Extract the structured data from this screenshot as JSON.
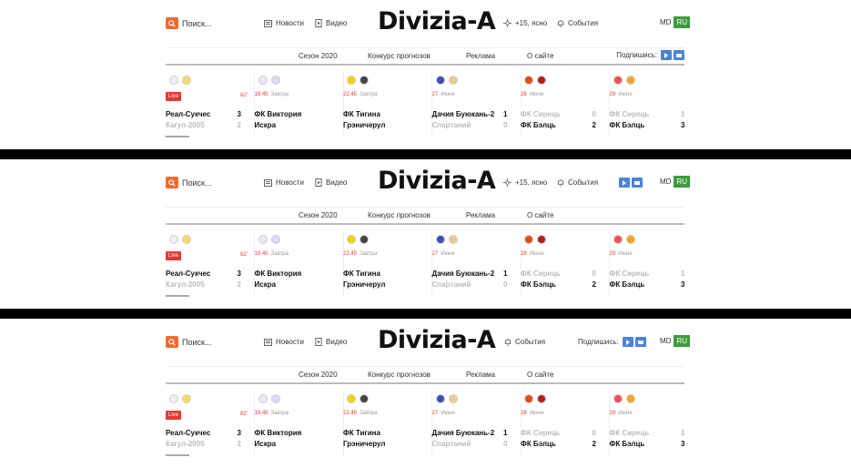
{
  "search": {
    "label": "Поиск..."
  },
  "nav": {
    "news": "Новости",
    "video": "Видео"
  },
  "logo": "Divizia-A",
  "weather": "+15, ясно",
  "events": "События",
  "subscribe": "Подпишись:",
  "langs": {
    "md": "MD",
    "ru": "RU"
  },
  "subnav": [
    "Сезон 2020",
    "Конкурс прогнозов",
    "Реклама",
    "О сайте"
  ],
  "games": [
    {
      "status": "Live",
      "minute": "82'",
      "date": "",
      "day": "",
      "t1": "Реал-Сукчес",
      "s1": "3",
      "t2": "Кагул-2005",
      "s2": "2",
      "w": 1,
      "c1": "#eef",
      "c2": "#ffd966"
    },
    {
      "status": "",
      "minute": "",
      "date": "19.45",
      "day": "Завтра",
      "t1": "ФК Виктория",
      "s1": "",
      "t2": "Искра",
      "s2": "",
      "w": 0,
      "c1": "#e6e9ff",
      "c2": "#e0d7ff"
    },
    {
      "status": "",
      "minute": "",
      "date": "22.45",
      "day": "Завтра",
      "t1": "ФК Тигина",
      "s1": "",
      "t2": "Грэничерул",
      "s2": "",
      "w": 0,
      "c1": "#f1d400",
      "c2": "#444"
    },
    {
      "status": "",
      "minute": "",
      "date": "27",
      "day": "Июня",
      "t1": "Дачия Буюкань-2",
      "s1": "1",
      "t2": "Спартаний",
      "s2": "0",
      "w": 1,
      "c1": "#3b4fb5",
      "c2": "#f3c98b"
    },
    {
      "status": "",
      "minute": "",
      "date": "28",
      "day": "Июня",
      "t1": "ФК Сирець",
      "s1": "0",
      "t2": "ФК Бэлць",
      "s2": "2",
      "w": 2,
      "c1": "#e64a19",
      "c2": "#b71c1c"
    },
    {
      "status": "",
      "minute": "",
      "date": "29",
      "day": "Июня",
      "t1": "ФК Сирець",
      "s1": "1",
      "t2": "ФК Бэлць",
      "s2": "3",
      "w": 2,
      "c1": "#ef5350",
      "c2": "#f6a623"
    }
  ],
  "colors": {
    "accent": "#f36a2d",
    "live": "#e53935",
    "lang_active": "#3e9b3e",
    "social": "#4a83d8"
  }
}
